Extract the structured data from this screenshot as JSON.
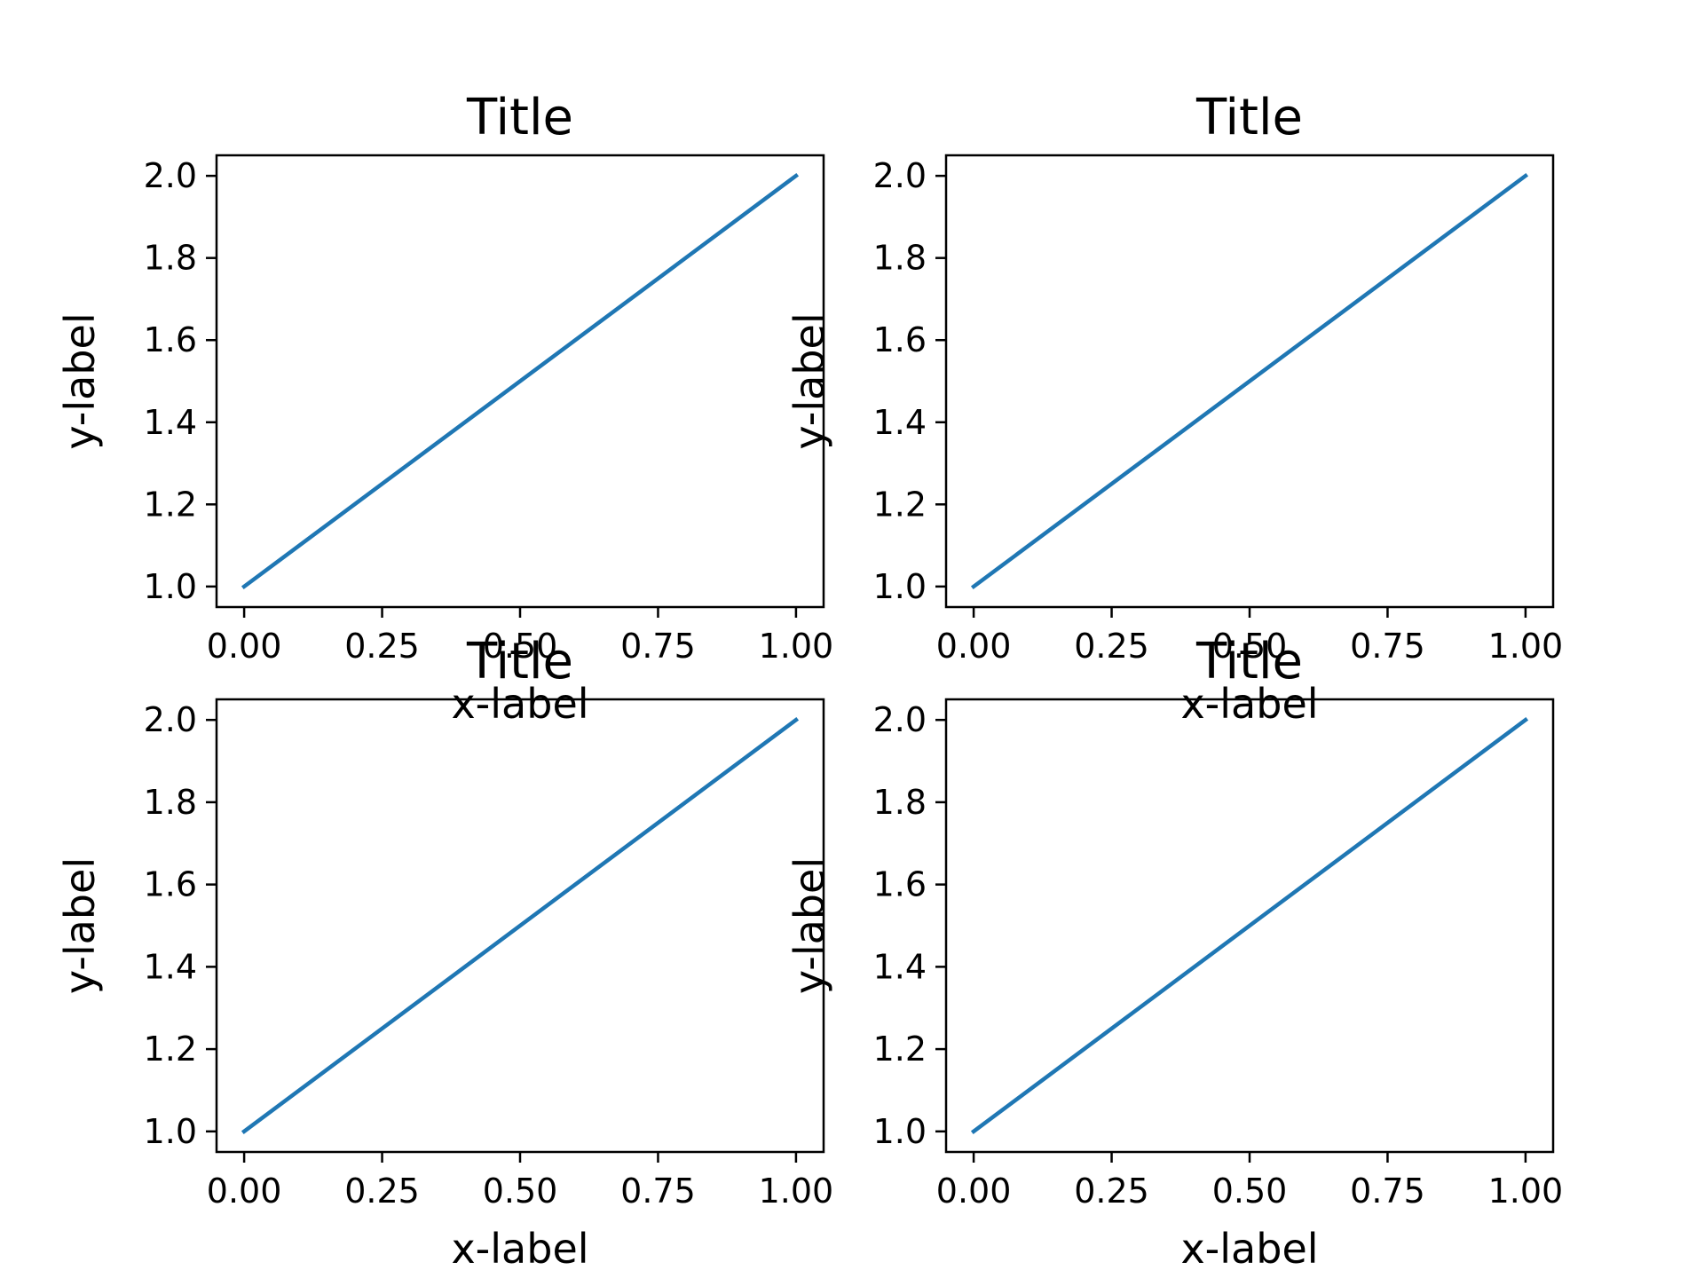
{
  "figure": {
    "background": "#ffffff",
    "line_color": "#1f77b4",
    "axes_color": "#000000"
  },
  "chart_data": [
    {
      "type": "line",
      "title": "Title",
      "xlabel": "x-label",
      "ylabel": "y-label",
      "series": [
        {
          "x": [
            0,
            1
          ],
          "y": [
            1,
            2
          ]
        }
      ],
      "xlim": [
        -0.05,
        1.05
      ],
      "ylim": [
        0.95,
        2.05
      ],
      "xticks": [
        0,
        0.25,
        0.5,
        0.75,
        1
      ],
      "xtick_labels": [
        "0.00",
        "0.25",
        "0.50",
        "0.75",
        "1.00"
      ],
      "yticks": [
        1,
        1.2,
        1.4,
        1.6,
        1.8,
        2
      ],
      "ytick_labels": [
        "1.0",
        "1.2",
        "1.4",
        "1.6",
        "1.8",
        "2.0"
      ],
      "grid": false
    },
    {
      "type": "line",
      "title": "Title",
      "xlabel": "x-label",
      "ylabel": "y-label",
      "series": [
        {
          "x": [
            0,
            1
          ],
          "y": [
            1,
            2
          ]
        }
      ],
      "xlim": [
        -0.05,
        1.05
      ],
      "ylim": [
        0.95,
        2.05
      ],
      "xticks": [
        0,
        0.25,
        0.5,
        0.75,
        1
      ],
      "xtick_labels": [
        "0.00",
        "0.25",
        "0.50",
        "0.75",
        "1.00"
      ],
      "yticks": [
        1,
        1.2,
        1.4,
        1.6,
        1.8,
        2
      ],
      "ytick_labels": [
        "1.0",
        "1.2",
        "1.4",
        "1.6",
        "1.8",
        "2.0"
      ],
      "grid": false
    },
    {
      "type": "line",
      "title": "Title",
      "xlabel": "x-label",
      "ylabel": "y-label",
      "series": [
        {
          "x": [
            0,
            1
          ],
          "y": [
            1,
            2
          ]
        }
      ],
      "xlim": [
        -0.05,
        1.05
      ],
      "ylim": [
        0.95,
        2.05
      ],
      "xticks": [
        0,
        0.25,
        0.5,
        0.75,
        1
      ],
      "xtick_labels": [
        "0.00",
        "0.25",
        "0.50",
        "0.75",
        "1.00"
      ],
      "yticks": [
        1,
        1.2,
        1.4,
        1.6,
        1.8,
        2
      ],
      "ytick_labels": [
        "1.0",
        "1.2",
        "1.4",
        "1.6",
        "1.8",
        "2.0"
      ],
      "grid": false
    },
    {
      "type": "line",
      "title": "Title",
      "xlabel": "x-label",
      "ylabel": "y-label",
      "series": [
        {
          "x": [
            0,
            1
          ],
          "y": [
            1,
            2
          ]
        }
      ],
      "xlim": [
        -0.05,
        1.05
      ],
      "ylim": [
        0.95,
        2.05
      ],
      "xticks": [
        0,
        0.25,
        0.5,
        0.75,
        1
      ],
      "xtick_labels": [
        "0.00",
        "0.25",
        "0.50",
        "0.75",
        "1.00"
      ],
      "yticks": [
        1,
        1.2,
        1.4,
        1.6,
        1.8,
        2
      ],
      "ytick_labels": [
        "1.0",
        "1.2",
        "1.4",
        "1.6",
        "1.8",
        "2.0"
      ],
      "grid": false
    }
  ]
}
